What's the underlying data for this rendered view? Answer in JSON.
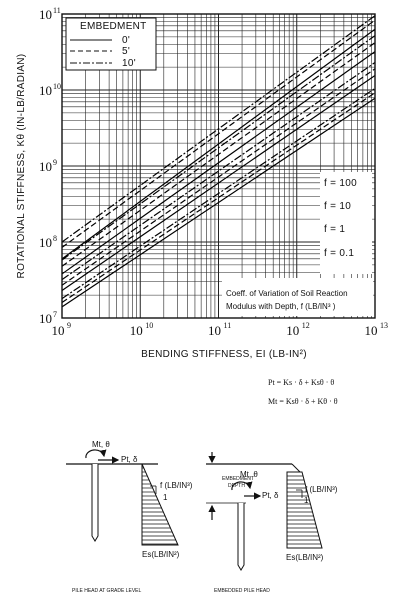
{
  "chart_data": {
    "type": "line",
    "title": "",
    "xlabel": "BENDING STIFFNESS, EI (LB-IN²)",
    "ylabel": "ROTATIONAL STIFFNESS, Kθ (IN-LB/RADIAN)",
    "xscale": "log",
    "yscale": "log",
    "xlim": [
      1000000000.0,
      10000000000000.0
    ],
    "ylim": [
      10000000.0,
      100000000000.0
    ],
    "x_ticks": [
      {
        "base": "10",
        "exp": "9",
        "value": 1000000000.0
      },
      {
        "base": "10",
        "exp": "10",
        "value": 10000000000.0
      },
      {
        "base": "10",
        "exp": "11",
        "value": 100000000000.0
      },
      {
        "base": "10",
        "exp": "12",
        "value": 1000000000000.0
      },
      {
        "base": "10",
        "exp": "13",
        "value": 10000000000000.0
      }
    ],
    "y_ticks": [
      {
        "base": "10",
        "exp": "7",
        "value": 10000000.0
      },
      {
        "base": "10",
        "exp": "8",
        "value": 100000000.0
      },
      {
        "base": "10",
        "exp": "9",
        "value": 1000000000.0
      },
      {
        "base": "10",
        "exp": "10",
        "value": 10000000000.0
      },
      {
        "base": "10",
        "exp": "11",
        "value": 100000000000.0
      }
    ],
    "grid": true,
    "legend": {
      "title": "EMBEDMENT",
      "placement": "top-left",
      "entries": [
        {
          "label": "0'",
          "style": "solid"
        },
        {
          "label": "5'",
          "style": "dashed"
        },
        {
          "label": "10'",
          "style": "dashdot"
        }
      ]
    },
    "f_labels": [
      "f = 100",
      "f = 10",
      "f = 1",
      "f = 0.1"
    ],
    "annotation": {
      "line1": "Coeff. of Variation of Soil Reaction",
      "line2": "Modulus with Depth, f (LB/IN³ )"
    },
    "series": [
      {
        "f": "100",
        "embedment": "0'",
        "style": "solid",
        "x": [
          1000000000.0,
          10000000000000.0
        ],
        "y": [
          60000000.0,
          63000000000.0
        ]
      },
      {
        "f": "100",
        "embedment": "5'",
        "style": "dashed",
        "x": [
          1000000000.0,
          10000000000000.0
        ],
        "y": [
          85000000.0,
          83000000000.0
        ]
      },
      {
        "f": "100",
        "embedment": "10'",
        "style": "dashdot",
        "x": [
          1000000000.0,
          10000000000000.0
        ],
        "y": [
          100000000.0,
          95000000000.0
        ]
      },
      {
        "f": "10",
        "embedment": "0'",
        "style": "solid",
        "x": [
          1000000000.0,
          10000000000000.0
        ],
        "y": [
          38000000.0,
          32000000000.0
        ]
      },
      {
        "f": "10",
        "embedment": "5'",
        "style": "dashed",
        "x": [
          1000000000.0,
          10000000000000.0
        ],
        "y": [
          48000000.0,
          42000000000.0
        ]
      },
      {
        "f": "10",
        "embedment": "10'",
        "style": "dashdot",
        "x": [
          1000000000.0,
          10000000000000.0
        ],
        "y": [
          58000000.0,
          52000000000.0
        ]
      },
      {
        "f": "1",
        "embedment": "0'",
        "style": "solid",
        "x": [
          1000000000.0,
          10000000000000.0
        ],
        "y": [
          23000000.0,
          15500000000.0
        ]
      },
      {
        "f": "1",
        "embedment": "5'",
        "style": "dashed",
        "x": [
          1000000000.0,
          10000000000000.0
        ],
        "y": [
          27000000.0,
          19000000000.0
        ]
      },
      {
        "f": "1",
        "embedment": "10'",
        "style": "dashdot",
        "x": [
          1000000000.0,
          10000000000000.0
        ],
        "y": [
          32000000.0,
          23000000000.0
        ]
      },
      {
        "f": "0.1",
        "embedment": "0'",
        "style": "solid",
        "x": [
          1000000000.0,
          10000000000000.0
        ],
        "y": [
          14000000.0,
          7800000000.0
        ]
      },
      {
        "f": "0.1",
        "embedment": "5'",
        "style": "dashed",
        "x": [
          1000000000.0,
          10000000000000.0
        ],
        "y": [
          16000000.0,
          9200000000.0
        ]
      },
      {
        "f": "0.1",
        "embedment": "10'",
        "style": "dashdot",
        "x": [
          1000000000.0,
          10000000000000.0
        ],
        "y": [
          18000000.0,
          10500000000.0
        ]
      }
    ]
  },
  "equations": {
    "eq1": "Pt = Ks · δ + Ksθ · θ",
    "eq2": "Mt = Ksθ · δ + Kθ · θ"
  },
  "diagrams": {
    "left": {
      "moment_label": "Mt, θ",
      "force_label": "Pt, δ",
      "f_label": "f (LB/IN³)",
      "slope_label": "1",
      "es_label": "Es(LB/IN²)",
      "caption": "PILE HEAD AT GRADE LEVEL"
    },
    "right": {
      "depth_label_1": "EMBEDMENT",
      "depth_label_2": "DEPTH",
      "moment_label": "Mt, θ",
      "force_label": "Pt, δ",
      "f_label": "f (LB/IN³)",
      "slope_label": "1",
      "es_label": "Es(LB/IN²)",
      "caption": "EMBEDDED PILE HEAD"
    }
  }
}
